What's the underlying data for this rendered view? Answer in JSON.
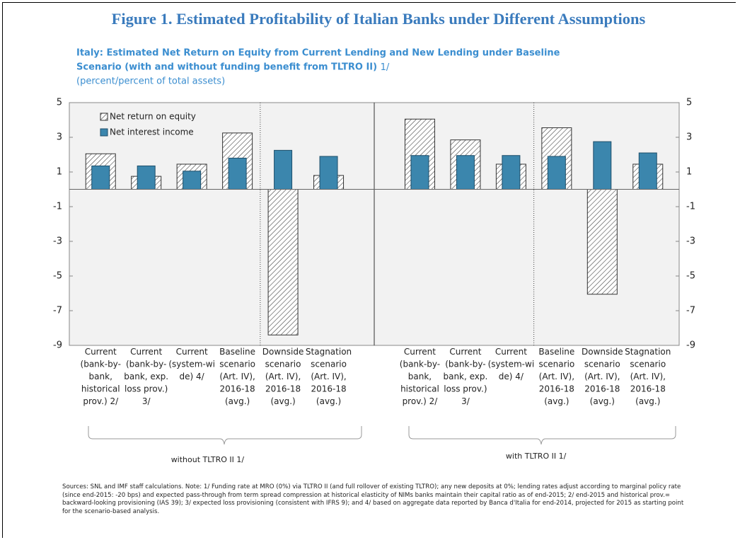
{
  "chart_data": {
    "type": "bar",
    "title": "Figure 1. Estimated Profitability of Italian Banks under Different Assumptions",
    "subtitle": "Italy: Estimated Net Return on Equity from Current Lending and New Lending under Baseline Scenario (with and without funding benefit from TLTRO II)",
    "subtitle_note": "1/",
    "units": "(percent/percent of total assets)",
    "categories": [
      "Current\n(bank-by-\nbank,\nhistorical\nprov.) 2/",
      "Current\n(bank-by-\nbank, exp.\nloss prov.)\n3/",
      "Current\n(system-wi\nde) 4/",
      "Baseline\nscenario\n(Art. IV),\n2016-18\n(avg.)",
      "Downside\nscenario\n(Art. IV),\n2016-18\n(avg.)",
      "Stagnation\nscenario\n(Art. IV),\n2016-18\n(avg.)",
      null,
      "Current\n(bank-by-\nbank,\nhistorical\nprov.) 2/",
      "Current\n(bank-by-\nbank, exp.\nloss prov.)\n3/",
      "Current\n(system-wi\nde) 4/",
      "Baseline\nscenario\n(Art. IV),\n2016-18\n(avg.)",
      "Downside\nscenario\n(Art. IV),\n2016-18\n(avg.)",
      "Stagnation\nscenario\n(Art. IV),\n2016-18\n(avg.)"
    ],
    "groups": [
      "without TLTRO II 1/",
      "with TLTRO II 1/"
    ],
    "series": [
      {
        "name": "Net return on equity",
        "color": "hatched",
        "values": [
          2.05,
          0.75,
          1.45,
          3.25,
          -8.4,
          0.8,
          null,
          4.05,
          2.85,
          1.45,
          3.55,
          -6.05,
          1.45
        ]
      },
      {
        "name": "Net interest income",
        "color": "#3b86ad",
        "values": [
          1.35,
          1.35,
          1.05,
          1.8,
          2.25,
          1.9,
          null,
          1.95,
          1.95,
          1.95,
          1.9,
          2.75,
          2.1
        ]
      }
    ],
    "ylim": [
      -9,
      5
    ],
    "yticks": [
      5,
      3,
      1,
      -1,
      -3,
      -5,
      -7,
      -9
    ],
    "y2lim": [
      -9,
      5
    ],
    "y2ticks": [
      5,
      3,
      1,
      -1,
      -3,
      -5,
      -7,
      -9
    ],
    "legend": "upper left",
    "note": "Sources: SNL and IMF staff calculations. Note: 1/ Funding rate at MRO (0%) via TLTRO II (and full rollover of existing TLTRO); any new deposits at 0%; lending rates adjust according to marginal policy rate (since end-2015: -20 bps) and expected pass-through from term spread compression at historical elasticity of NIMs banks maintain their capital ratio as of end-2015; 2/ end-2015 and historical prov.= backward-looking provisioning (IAS 39); 3/ expected loss provisioning (consistent with IFRS 9); and 4/ based on aggregate data reported by Banca d'Italia for end-2014, projected for 2015 as starting point for the scenario-based analysis."
  }
}
